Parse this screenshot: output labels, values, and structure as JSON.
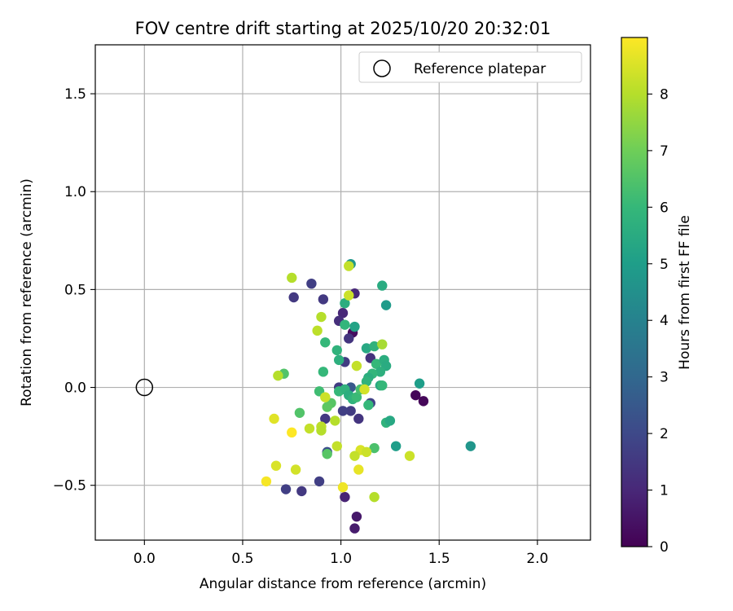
{
  "chart_data": {
    "type": "scatter",
    "title": "FOV centre drift starting at 2025/10/20 20:32:01",
    "xlabel": "Angular distance from reference (arcmin)",
    "ylabel": "Rotation from reference (arcmin)",
    "xlim": [
      -0.25,
      2.27
    ],
    "ylim": [
      -0.78,
      1.75
    ],
    "xticks": [
      0.0,
      0.5,
      1.0,
      1.5,
      2.0
    ],
    "xtick_labels": [
      "0.0",
      "0.5",
      "1.0",
      "1.5",
      "2.0"
    ],
    "yticks": [
      -0.5,
      0.0,
      0.5,
      1.0,
      1.5
    ],
    "ytick_labels": [
      "−0.5",
      "0.0",
      "0.5",
      "1.0",
      "1.5"
    ],
    "grid": true,
    "legend": {
      "location": "top-right",
      "entries": [
        "Reference platepar"
      ]
    },
    "reference_point": {
      "x": 0.0,
      "y": 0.0,
      "label": "Reference platepar"
    },
    "colorbar": {
      "label": "Hours from first FF file",
      "range": [
        0,
        9
      ],
      "ticks": [
        0,
        1,
        2,
        3,
        4,
        5,
        6,
        7,
        8
      ],
      "tick_labels": [
        "0",
        "1",
        "2",
        "3",
        "4",
        "5",
        "6",
        "7",
        "8"
      ],
      "colormap": [
        "#440154",
        "#482878",
        "#3e4989",
        "#31688e",
        "#26828e",
        "#1f9e89",
        "#35b779",
        "#6ece58",
        "#b5de2b",
        "#fde725"
      ]
    },
    "points": [
      {
        "x": 1.38,
        "y": -0.04,
        "h": 0.1
      },
      {
        "x": 1.42,
        "y": -0.07,
        "h": 0.15
      },
      {
        "x": 1.06,
        "y": 0.28,
        "h": 0.3
      },
      {
        "x": 1.08,
        "y": -0.66,
        "h": 0.6
      },
      {
        "x": 1.07,
        "y": -0.72,
        "h": 0.7
      },
      {
        "x": 1.02,
        "y": -0.56,
        "h": 0.9
      },
      {
        "x": 1.07,
        "y": 0.48,
        "h": 1.0
      },
      {
        "x": 1.01,
        "y": 0.38,
        "h": 1.0
      },
      {
        "x": 0.99,
        "y": 0.34,
        "h": 1.2
      },
      {
        "x": 1.04,
        "y": 0.25,
        "h": 1.4
      },
      {
        "x": 1.15,
        "y": 0.15,
        "h": 1.3
      },
      {
        "x": 1.02,
        "y": 0.13,
        "h": 1.6
      },
      {
        "x": 0.76,
        "y": 0.46,
        "h": 1.5
      },
      {
        "x": 0.91,
        "y": 0.45,
        "h": 1.5
      },
      {
        "x": 0.85,
        "y": 0.53,
        "h": 1.7
      },
      {
        "x": 0.92,
        "y": -0.16,
        "h": 1.5
      },
      {
        "x": 0.99,
        "y": 0.0,
        "h": 1.6
      },
      {
        "x": 1.05,
        "y": -0.12,
        "h": 1.6
      },
      {
        "x": 1.09,
        "y": -0.16,
        "h": 1.4
      },
      {
        "x": 1.15,
        "y": -0.08,
        "h": 1.8
      },
      {
        "x": 1.01,
        "y": -0.12,
        "h": 1.7
      },
      {
        "x": 0.72,
        "y": -0.52,
        "h": 1.7
      },
      {
        "x": 0.8,
        "y": -0.53,
        "h": 1.5
      },
      {
        "x": 0.89,
        "y": -0.48,
        "h": 1.7
      },
      {
        "x": 0.93,
        "y": -0.33,
        "h": 2.2
      },
      {
        "x": 1.05,
        "y": 0.0,
        "h": 2.5
      },
      {
        "x": 1.05,
        "y": 0.63,
        "h": 4.8
      },
      {
        "x": 1.21,
        "y": 0.52,
        "h": 5.5
      },
      {
        "x": 1.23,
        "y": 0.42,
        "h": 4.9
      },
      {
        "x": 1.02,
        "y": 0.43,
        "h": 5.6
      },
      {
        "x": 1.07,
        "y": 0.31,
        "h": 5.2
      },
      {
        "x": 1.02,
        "y": 0.32,
        "h": 5.9
      },
      {
        "x": 0.92,
        "y": 0.23,
        "h": 6.0
      },
      {
        "x": 0.98,
        "y": 0.19,
        "h": 5.8
      },
      {
        "x": 0.99,
        "y": 0.14,
        "h": 5.7
      },
      {
        "x": 1.13,
        "y": 0.2,
        "h": 5.4
      },
      {
        "x": 1.17,
        "y": 0.21,
        "h": 5.8
      },
      {
        "x": 1.18,
        "y": 0.12,
        "h": 6.0
      },
      {
        "x": 1.22,
        "y": 0.14,
        "h": 5.6
      },
      {
        "x": 1.23,
        "y": 0.11,
        "h": 5.5
      },
      {
        "x": 1.2,
        "y": 0.08,
        "h": 5.7
      },
      {
        "x": 1.16,
        "y": 0.07,
        "h": 5.9
      },
      {
        "x": 1.14,
        "y": 0.05,
        "h": 5.6
      },
      {
        "x": 1.13,
        "y": 0.03,
        "h": 5.8
      },
      {
        "x": 1.2,
        "y": 0.01,
        "h": 5.4
      },
      {
        "x": 1.21,
        "y": 0.01,
        "h": 6.0
      },
      {
        "x": 1.4,
        "y": 0.02,
        "h": 5.0
      },
      {
        "x": 0.91,
        "y": 0.08,
        "h": 6.0
      },
      {
        "x": 0.71,
        "y": 0.07,
        "h": 6.5
      },
      {
        "x": 0.89,
        "y": -0.02,
        "h": 6.2
      },
      {
        "x": 0.99,
        "y": -0.02,
        "h": 6.0
      },
      {
        "x": 1.02,
        "y": -0.01,
        "h": 5.8
      },
      {
        "x": 1.04,
        "y": -0.04,
        "h": 5.6
      },
      {
        "x": 1.06,
        "y": -0.06,
        "h": 5.8
      },
      {
        "x": 1.08,
        "y": -0.05,
        "h": 6.1
      },
      {
        "x": 1.1,
        "y": -0.01,
        "h": 6.3
      },
      {
        "x": 1.14,
        "y": -0.09,
        "h": 6.0
      },
      {
        "x": 1.23,
        "y": -0.18,
        "h": 5.8
      },
      {
        "x": 1.25,
        "y": -0.17,
        "h": 5.4
      },
      {
        "x": 0.95,
        "y": -0.08,
        "h": 6.6
      },
      {
        "x": 0.93,
        "y": -0.1,
        "h": 6.7
      },
      {
        "x": 0.79,
        "y": -0.13,
        "h": 6.5
      },
      {
        "x": 1.28,
        "y": -0.3,
        "h": 5.0
      },
      {
        "x": 1.66,
        "y": -0.3,
        "h": 4.7
      },
      {
        "x": 1.17,
        "y": -0.31,
        "h": 6.4
      },
      {
        "x": 0.93,
        "y": -0.34,
        "h": 6.6
      },
      {
        "x": 1.04,
        "y": 0.62,
        "h": 8.2
      },
      {
        "x": 0.75,
        "y": 0.56,
        "h": 8.0
      },
      {
        "x": 1.04,
        "y": 0.47,
        "h": 8.3
      },
      {
        "x": 0.9,
        "y": 0.36,
        "h": 8.0
      },
      {
        "x": 0.88,
        "y": 0.29,
        "h": 8.1
      },
      {
        "x": 1.21,
        "y": 0.22,
        "h": 7.8
      },
      {
        "x": 1.08,
        "y": 0.11,
        "h": 8.2
      },
      {
        "x": 0.68,
        "y": 0.06,
        "h": 8.0
      },
      {
        "x": 1.12,
        "y": -0.01,
        "h": 8.4
      },
      {
        "x": 0.92,
        "y": -0.05,
        "h": 8.3
      },
      {
        "x": 0.66,
        "y": -0.16,
        "h": 8.6
      },
      {
        "x": 0.97,
        "y": -0.17,
        "h": 8.0
      },
      {
        "x": 0.84,
        "y": -0.21,
        "h": 8.2
      },
      {
        "x": 0.9,
        "y": -0.2,
        "h": 8.1
      },
      {
        "x": 0.9,
        "y": -0.22,
        "h": 8.0
      },
      {
        "x": 0.75,
        "y": -0.23,
        "h": 9.0
      },
      {
        "x": 0.98,
        "y": -0.3,
        "h": 8.2
      },
      {
        "x": 1.1,
        "y": -0.32,
        "h": 8.5
      },
      {
        "x": 1.13,
        "y": -0.33,
        "h": 8.3
      },
      {
        "x": 1.07,
        "y": -0.35,
        "h": 8.2
      },
      {
        "x": 1.35,
        "y": -0.35,
        "h": 8.3
      },
      {
        "x": 0.67,
        "y": -0.4,
        "h": 8.5
      },
      {
        "x": 0.77,
        "y": -0.42,
        "h": 8.4
      },
      {
        "x": 1.09,
        "y": -0.42,
        "h": 8.7
      },
      {
        "x": 0.62,
        "y": -0.48,
        "h": 8.9
      },
      {
        "x": 1.01,
        "y": -0.51,
        "h": 8.8
      },
      {
        "x": 1.17,
        "y": -0.56,
        "h": 8.0
      }
    ]
  }
}
